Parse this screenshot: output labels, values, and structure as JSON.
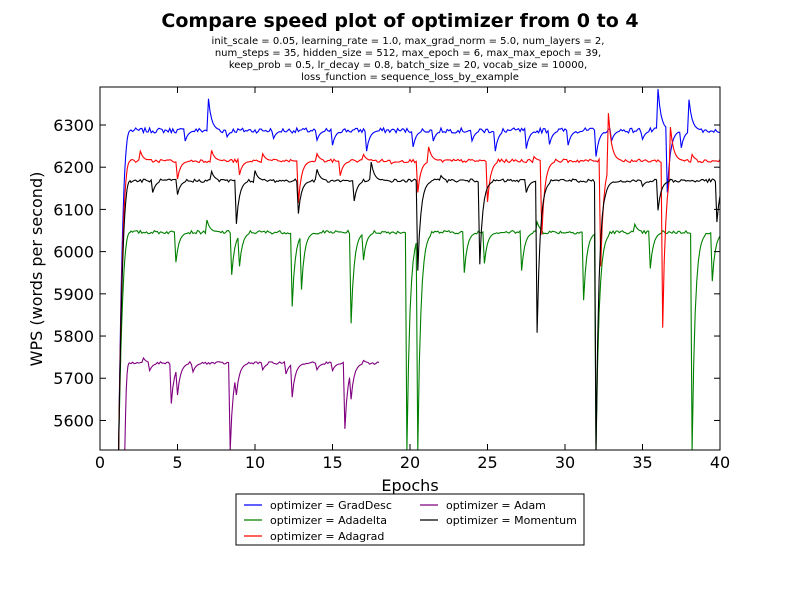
{
  "chart_data": {
    "type": "line",
    "title": "Compare speed plot of optimizer from 0 to 4",
    "subtitle": [
      "init_scale = 0.05, learning_rate = 1.0, max_grad_norm = 5.0, num_layers = 2,",
      "num_steps = 35, hidden_size = 512, max_epoch = 6, max_max_epoch = 39,",
      "keep_prob = 0.5, lr_decay = 0.8, batch_size = 20, vocab_size = 10000,",
      "loss_function = sequence_loss_by_example"
    ],
    "xlabel": "Epochs",
    "ylabel": "WPS (words per second)",
    "xlim": [
      0,
      40
    ],
    "ylim": [
      5530,
      6390
    ],
    "xticks": [
      0,
      5,
      10,
      15,
      20,
      25,
      30,
      35,
      40
    ],
    "yticks": [
      5600,
      5700,
      5800,
      5900,
      6000,
      6100,
      6200,
      6300
    ],
    "grid": false,
    "legend_position": "below-plot",
    "series": [
      {
        "name": "optimizer = GradDesc",
        "color": "#0000ff",
        "base": 6287,
        "noise": 6,
        "rise_from": 5530,
        "rise": [
          1.2,
          2.0
        ],
        "dips": [
          [
            5.5,
            6262
          ],
          [
            7.0,
            6362
          ],
          [
            8.2,
            6272
          ],
          [
            11.2,
            6268
          ],
          [
            14.0,
            6264
          ],
          [
            15.0,
            6252
          ],
          [
            17.2,
            6238
          ],
          [
            20.2,
            6248
          ],
          [
            21.5,
            6262
          ],
          [
            24.0,
            6262
          ],
          [
            25.5,
            6238
          ],
          [
            27.5,
            6244
          ],
          [
            29.0,
            6254
          ],
          [
            30.2,
            6252
          ],
          [
            32.0,
            6225
          ],
          [
            33.0,
            6262
          ],
          [
            35.0,
            6266
          ],
          [
            36.0,
            6385
          ],
          [
            36.6,
            6140
          ],
          [
            37.5,
            6246
          ],
          [
            38.0,
            6360
          ],
          [
            39.2,
            6284
          ]
        ],
        "end": 18
      },
      {
        "name": "optimizer = Adadelta",
        "color": "#008000",
        "base": 6046,
        "noise": 4,
        "rise_from": 5530,
        "rise": [
          1.2,
          2.0
        ],
        "dips": [
          [
            4.9,
            5975
          ],
          [
            5.0,
            6080
          ],
          [
            6.9,
            6075
          ],
          [
            8.5,
            5945
          ],
          [
            9.0,
            5965
          ],
          [
            12.4,
            5870
          ],
          [
            13.0,
            5910
          ],
          [
            16.2,
            5830
          ],
          [
            17.0,
            5980
          ],
          [
            19.8,
            5530
          ],
          [
            20.5,
            5530
          ],
          [
            23.5,
            5950
          ],
          [
            24.8,
            5972
          ],
          [
            27.2,
            5955
          ],
          [
            28.2,
            6070
          ],
          [
            31.2,
            5885
          ],
          [
            32.0,
            5530
          ],
          [
            34.5,
            6065
          ],
          [
            35.5,
            5960
          ],
          [
            38.2,
            5530
          ],
          [
            39.5,
            5930
          ]
        ],
        "end": 18
      },
      {
        "name": "optimizer = Adagrad",
        "color": "#ff0000",
        "base": 6215,
        "noise": 4,
        "rise_from": 5530,
        "rise": [
          1.2,
          2.0
        ],
        "dips": [
          [
            2.6,
            6238
          ],
          [
            5.0,
            6172
          ],
          [
            7.2,
            6240
          ],
          [
            9.0,
            6182
          ],
          [
            10.5,
            6232
          ],
          [
            12.8,
            6115
          ],
          [
            14.0,
            6232
          ],
          [
            15.5,
            6180
          ],
          [
            17.0,
            6230
          ],
          [
            18.8,
            6208
          ],
          [
            20.5,
            6140
          ],
          [
            21.2,
            6248
          ],
          [
            25.0,
            6118
          ],
          [
            28.0,
            6225
          ],
          [
            28.5,
            6040
          ],
          [
            32.3,
            5965
          ],
          [
            32.8,
            6328
          ],
          [
            35.0,
            6215
          ],
          [
            36.3,
            5820
          ],
          [
            36.8,
            6295
          ],
          [
            38.2,
            6230
          ],
          [
            40.0,
            6218
          ]
        ],
        "end": 18
      },
      {
        "name": "optimizer = Adam",
        "color": "#800080",
        "base": 5736,
        "noise": 3,
        "rise_from": 5530,
        "rise": [
          1.6,
          1.9
        ],
        "dips": [
          [
            2.8,
            5748
          ],
          [
            3.2,
            5718
          ],
          [
            4.6,
            5640
          ],
          [
            5.0,
            5660
          ],
          [
            6.0,
            5715
          ],
          [
            8.4,
            5530
          ],
          [
            8.8,
            5660
          ],
          [
            10.5,
            5720
          ],
          [
            12.0,
            5710
          ],
          [
            12.4,
            5655
          ],
          [
            14.0,
            5720
          ],
          [
            15.0,
            5718
          ],
          [
            15.8,
            5580
          ],
          [
            16.2,
            5650
          ],
          [
            17.0,
            5742
          ]
        ],
        "end": 18
      },
      {
        "name": "optimizer = Momentum",
        "color": "#000000",
        "base": 6168,
        "noise": 4,
        "rise_from": 5530,
        "rise": [
          1.2,
          2.0
        ],
        "dips": [
          [
            3.4,
            6140
          ],
          [
            5.0,
            6135
          ],
          [
            7.2,
            6190
          ],
          [
            8.8,
            6066
          ],
          [
            10.0,
            6192
          ],
          [
            12.8,
            6090
          ],
          [
            14.0,
            6195
          ],
          [
            16.4,
            6120
          ],
          [
            17.5,
            6212
          ],
          [
            20.5,
            5955
          ],
          [
            22.0,
            6180
          ],
          [
            24.5,
            5970
          ],
          [
            27.5,
            6140
          ],
          [
            28.2,
            5808
          ],
          [
            30.5,
            6172
          ],
          [
            32.0,
            5530
          ],
          [
            32.6,
            6132
          ],
          [
            35.0,
            6155
          ],
          [
            36.0,
            6098
          ],
          [
            37.5,
            6170
          ],
          [
            39.8,
            6070
          ]
        ],
        "end": 18
      }
    ]
  }
}
